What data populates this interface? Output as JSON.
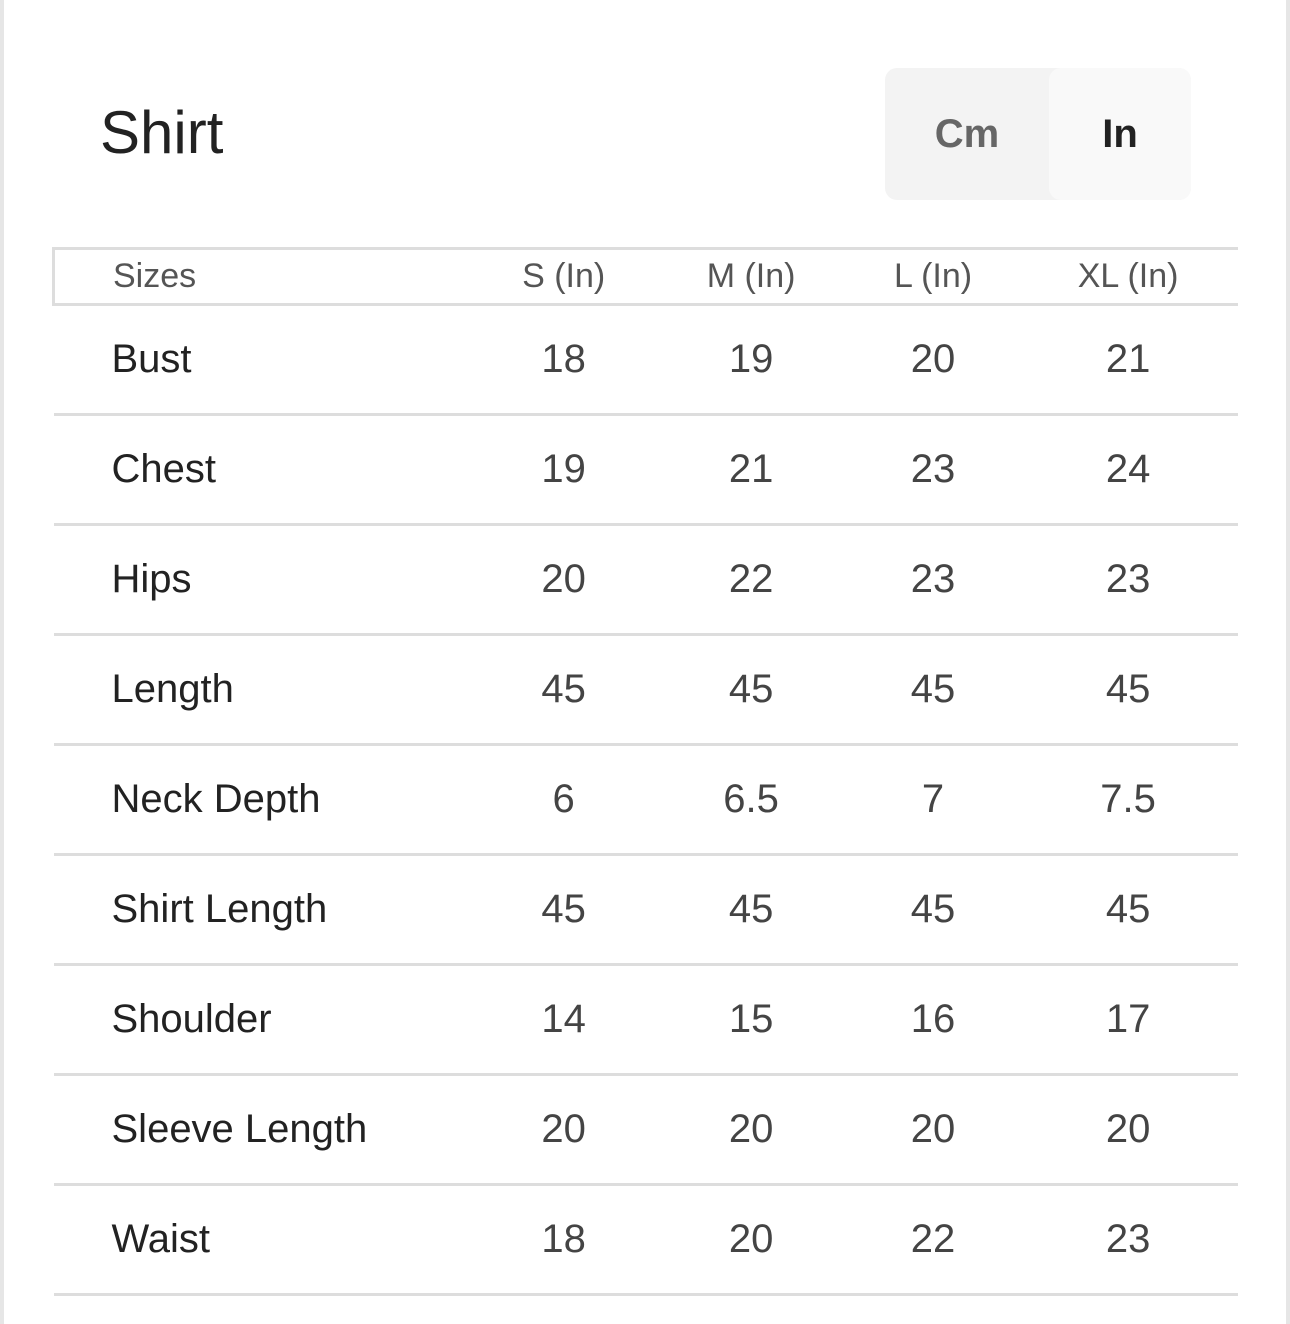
{
  "title": "Shirt",
  "unit_toggle": {
    "options": [
      "Cm",
      "In"
    ],
    "selected": "In"
  },
  "table": {
    "headers": [
      "Sizes",
      "S (In)",
      "M (In)",
      "L (In)",
      "XL (In)"
    ],
    "rows": [
      [
        "Bust",
        "18",
        "19",
        "20",
        "21"
      ],
      [
        "Chest",
        "19",
        "21",
        "23",
        "24"
      ],
      [
        "Hips",
        "20",
        "22",
        "23",
        "23"
      ],
      [
        "Length",
        "45",
        "45",
        "45",
        "45"
      ],
      [
        "Neck Depth",
        "6",
        "6.5",
        "7",
        "7.5"
      ],
      [
        "Shirt Length",
        "45",
        "45",
        "45",
        "45"
      ],
      [
        "Shoulder",
        "14",
        "15",
        "16",
        "17"
      ],
      [
        "Sleeve Length",
        "20",
        "20",
        "20",
        "20"
      ],
      [
        "Waist",
        "18",
        "20",
        "22",
        "23"
      ]
    ]
  }
}
